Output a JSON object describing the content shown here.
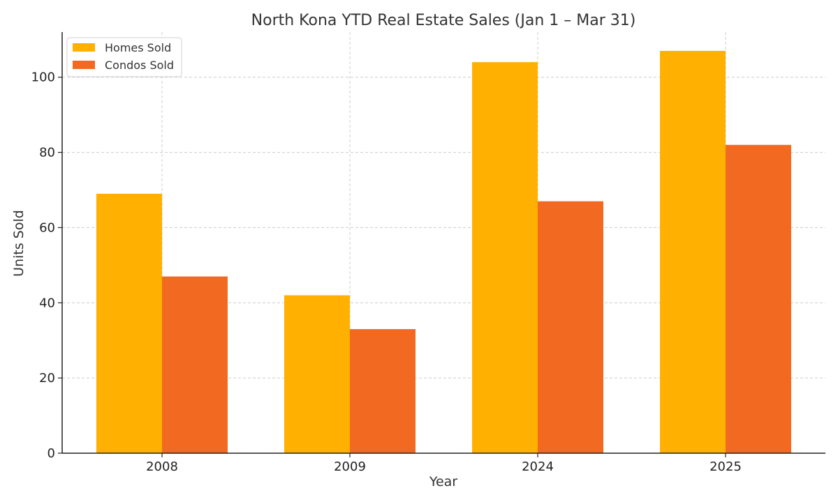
{
  "chart_data": {
    "type": "bar",
    "title": "North Kona YTD Real Estate Sales (Jan 1 – Mar 31)",
    "xlabel": "Year",
    "ylabel": "Units Sold",
    "categories": [
      "2008",
      "2009",
      "2024",
      "2025"
    ],
    "series": [
      {
        "name": "Homes Sold",
        "color": "#FFB000",
        "values": [
          69,
          42,
          104,
          107
        ]
      },
      {
        "name": "Condos Sold",
        "color": "#F26A22",
        "values": [
          47,
          33,
          67,
          82
        ]
      }
    ],
    "ylim": [
      0,
      112
    ],
    "yticks": [
      0,
      20,
      40,
      60,
      80,
      100
    ],
    "grid": true,
    "legend_position": "top-left"
  }
}
